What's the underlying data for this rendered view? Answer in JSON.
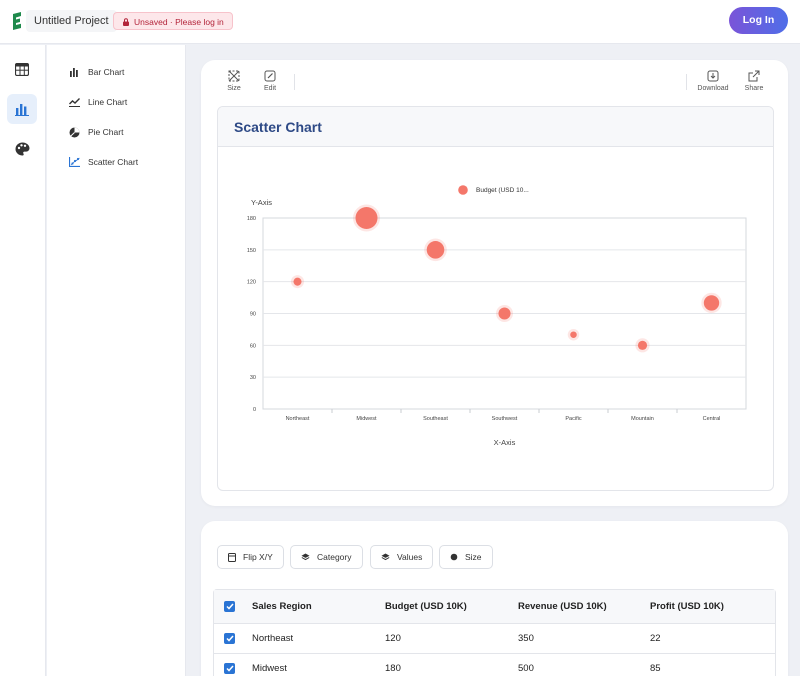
{
  "header": {
    "project_name": "Untitled Project",
    "unsaved_text": "Unsaved · Please log in",
    "login_label": "Log In"
  },
  "rail": {
    "items": [
      {
        "icon": "table-icon"
      },
      {
        "icon": "bar-chart-icon",
        "active": true
      },
      {
        "icon": "palette-icon"
      }
    ]
  },
  "chart_types": [
    {
      "label": "Bar Chart",
      "icon": "bar-chart-icon"
    },
    {
      "label": "Line Chart",
      "icon": "line-chart-icon"
    },
    {
      "label": "Pie Chart",
      "icon": "pie-chart-icon"
    },
    {
      "label": "Scatter Chart",
      "icon": "scatter-chart-icon"
    }
  ],
  "toolbar": {
    "size_label": "Size",
    "edit_label": "Edit",
    "download_label": "Download",
    "share_label": "Share"
  },
  "chart_title": "Scatter Chart",
  "chart_data": {
    "type": "scatter",
    "title": "",
    "xlabel": "X-Axis",
    "ylabel": "Y-Axis",
    "categories": [
      "Northeast",
      "Midwest",
      "Southeast",
      "Southwest",
      "Pacific",
      "Mountain",
      "Central"
    ],
    "series": [
      {
        "name": "Budget (USD 10...",
        "values": [
          120,
          180,
          150,
          90,
          70,
          60,
          100
        ],
        "sizes": [
          22,
          85,
          65,
          40,
          15,
          27,
          55
        ]
      }
    ],
    "ylim": [
      0,
      180
    ],
    "yticks": [
      0,
      30,
      60,
      90,
      120,
      150,
      180
    ],
    "grid": true,
    "legend": "top-center",
    "color": "#f4776a"
  },
  "data_panel": {
    "flip_label": "Flip X/Y",
    "category_label": "Category",
    "values_label": "Values",
    "size_label": "Size",
    "columns": [
      "Sales Region",
      "Budget (USD 10K)",
      "Revenue (USD 10K)",
      "Profit (USD 10K)"
    ],
    "rows": [
      [
        "Northeast",
        "120",
        "350",
        "22"
      ],
      [
        "Midwest",
        "180",
        "500",
        "85"
      ]
    ]
  }
}
